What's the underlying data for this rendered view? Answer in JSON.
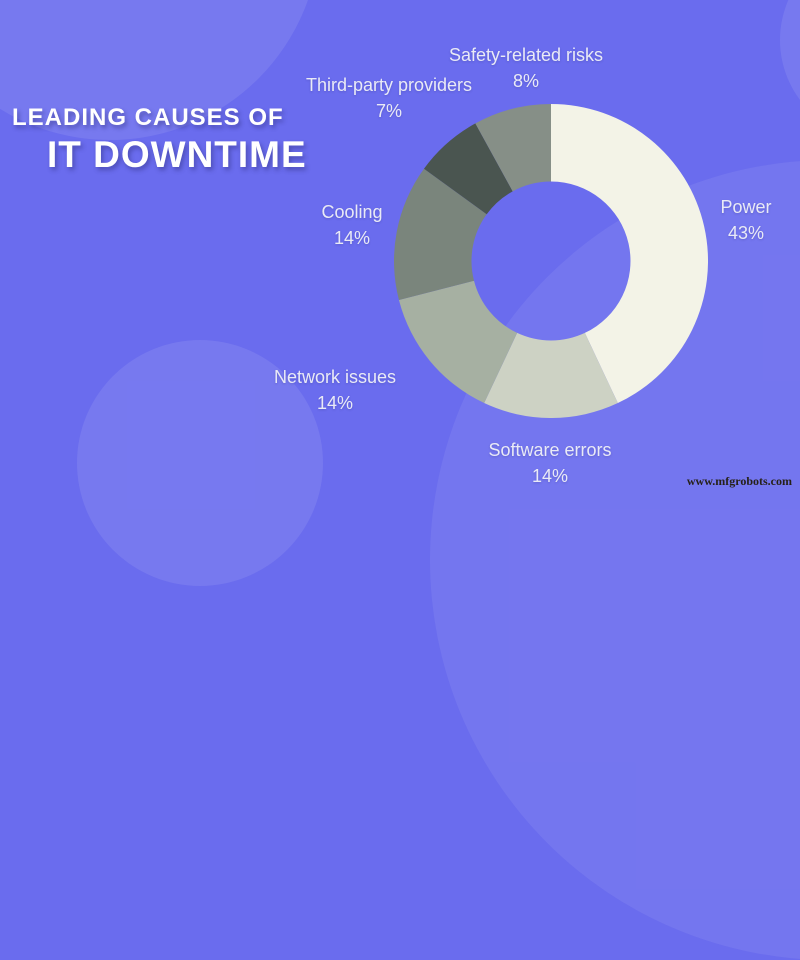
{
  "title": {
    "line1": "LEADING CAUSES OF",
    "line2": "IT DOWNTIME"
  },
  "watermark": "www.mfgrobots.com",
  "colors": {
    "background": "#6a6cee",
    "background_highlight_circle": "rgba(255,255,255,0.09)",
    "label_text": "#e9eaf6",
    "title_text": "#ffffff",
    "watermark_text": "#262118"
  },
  "chart_data": {
    "type": "pie",
    "subtype": "donut",
    "title": "Leading causes of IT downtime",
    "unit": "percent",
    "start_angle_deg": 0,
    "direction": "clockwise",
    "inner_radius_ratio": 0.5,
    "legend_position": "labels around chart",
    "segments": [
      {
        "label": "Power",
        "value": 43,
        "pct_label": "43%",
        "color": "#f3f3e7"
      },
      {
        "label": "Software errors",
        "value": 14,
        "pct_label": "14%",
        "color": "#cdd2c4"
      },
      {
        "label": "Network issues",
        "value": 14,
        "pct_label": "14%",
        "color": "#a6b0a2"
      },
      {
        "label": "Cooling",
        "value": 14,
        "pct_label": "14%",
        "color": "#7a857c"
      },
      {
        "label": "Third-party providers",
        "value": 7,
        "pct_label": "7%",
        "color": "#4a5550"
      },
      {
        "label": "Safety-related risks",
        "value": 8,
        "pct_label": "8%",
        "color": "#868f87"
      }
    ]
  }
}
